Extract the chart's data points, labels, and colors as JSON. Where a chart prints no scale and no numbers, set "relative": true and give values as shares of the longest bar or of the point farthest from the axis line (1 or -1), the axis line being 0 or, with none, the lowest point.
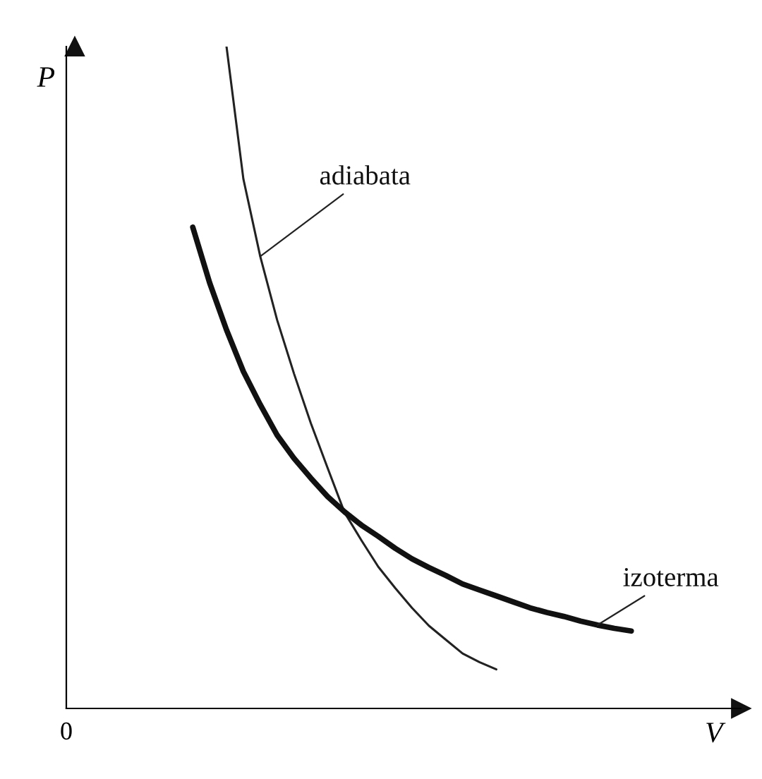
{
  "chart_data": {
    "type": "line",
    "relative": true,
    "xlabel": "V",
    "ylabel": "P",
    "annotations": [
      "0"
    ],
    "categories": [
      null,
      null,
      null,
      null,
      null,
      null,
      null,
      null,
      null,
      null,
      null,
      null,
      null,
      null,
      null,
      null,
      null,
      null,
      null,
      null,
      null,
      null,
      null,
      null,
      null,
      null,
      null,
      null,
      null,
      null,
      null,
      null,
      null,
      null,
      null,
      null,
      null,
      null,
      null,
      null
    ],
    "series": [
      {
        "name": "adiabata",
        "color": "#222222",
        "values": [
          null,
          null,
          null,
          null,
          null,
          null,
          null,
          null,
          null,
          1.0,
          0.8,
          0.683,
          0.587,
          0.506,
          0.431,
          0.363,
          0.296,
          0.254,
          0.214,
          0.182,
          0.152,
          0.125,
          0.104,
          0.083,
          0.07,
          0.059,
          null,
          null,
          null,
          null,
          null,
          null,
          null,
          null,
          null,
          null,
          null,
          null,
          null,
          null
        ]
      },
      {
        "name": "izoterma",
        "color": "#111111",
        "values": [
          null,
          null,
          null,
          null,
          null,
          null,
          null,
          0.727,
          0.643,
          0.572,
          0.509,
          0.459,
          0.413,
          0.378,
          0.348,
          0.32,
          0.297,
          0.277,
          0.26,
          0.242,
          0.226,
          0.213,
          0.201,
          0.188,
          0.179,
          0.17,
          0.161,
          0.152,
          0.145,
          0.139,
          0.132,
          0.126,
          0.121,
          0.117,
          null,
          null,
          null,
          null,
          null,
          null
        ]
      }
    ],
    "legend": false,
    "marker": "none",
    "line_style": "solid"
  }
}
